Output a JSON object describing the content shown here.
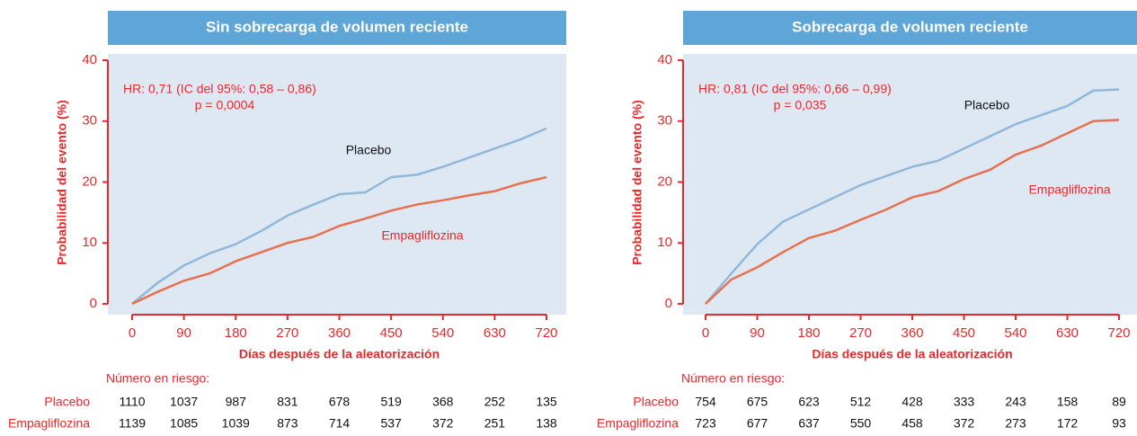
{
  "chart_data": [
    {
      "type": "line",
      "title": "Sin sobrecarga de volumen reciente",
      "xlabel": "Días después de la aleatorización",
      "ylabel": "Probabilidad del evento (%)",
      "annotations": [
        "HR: 0,71 (IC del 95%: 0,58 – 0,86)",
        "p = 0,0004"
      ],
      "xlim": [
        0,
        720
      ],
      "xticks": [
        0,
        90,
        180,
        270,
        360,
        450,
        540,
        630,
        720
      ],
      "ylim": [
        0,
        40
      ],
      "yticks": [
        0,
        10,
        20,
        30,
        40
      ],
      "x": [
        0,
        45,
        90,
        135,
        180,
        225,
        270,
        315,
        360,
        405,
        450,
        495,
        540,
        585,
        630,
        675,
        720
      ],
      "series": [
        {
          "name": "Placebo",
          "color": "#8fb8dc",
          "values": [
            0,
            3.5,
            6.3,
            8.3,
            9.8,
            12,
            14.5,
            16.3,
            18,
            18.3,
            20.8,
            21.2,
            22.5,
            24,
            25.5,
            27,
            28.8
          ]
        },
        {
          "name": "Empagliflozina",
          "color": "#e8704f",
          "values": [
            0,
            2,
            3.8,
            5,
            7,
            8.5,
            10,
            11,
            12.8,
            14,
            15.3,
            16.3,
            17,
            17.8,
            18.5,
            19.8,
            20.8
          ]
        }
      ],
      "risk_table": {
        "title": "Número en riesgo:",
        "rows": [
          {
            "name": "Placebo",
            "values": [
              1110,
              1037,
              987,
              831,
              678,
              519,
              368,
              252,
              135
            ]
          },
          {
            "name": "Empagliflozina",
            "values": [
              1139,
              1085,
              1039,
              873,
              714,
              537,
              372,
              251,
              138
            ]
          }
        ]
      }
    },
    {
      "type": "line",
      "title": "Sobrecarga de volumen reciente",
      "xlabel": "Días después de la aleatorización",
      "ylabel": "Probabilidad del evento (%)",
      "annotations": [
        "HR: 0,81 (IC del 95%: 0,66 – 0,99)",
        "p = 0,035"
      ],
      "xlim": [
        0,
        720
      ],
      "xticks": [
        0,
        90,
        180,
        270,
        360,
        450,
        540,
        630,
        720
      ],
      "ylim": [
        0,
        40
      ],
      "yticks": [
        0,
        10,
        20,
        30,
        40
      ],
      "x": [
        0,
        45,
        90,
        135,
        180,
        225,
        270,
        315,
        360,
        405,
        450,
        495,
        540,
        585,
        630,
        675,
        720
      ],
      "series": [
        {
          "name": "Placebo",
          "color": "#8fb8dc",
          "values": [
            0,
            5,
            9.8,
            13.5,
            15.5,
            17.5,
            19.5,
            21,
            22.5,
            23.5,
            25.5,
            27.5,
            29.5,
            31,
            32.5,
            35,
            35.2
          ]
        },
        {
          "name": "Empagliflozina",
          "color": "#e8704f",
          "values": [
            0,
            4,
            6,
            8.5,
            10.8,
            12,
            13.8,
            15.5,
            17.5,
            18.5,
            20.5,
            22,
            24.5,
            26,
            28,
            30,
            30.2
          ]
        }
      ],
      "risk_table": {
        "title": "Número en riesgo:",
        "rows": [
          {
            "name": "Placebo",
            "values": [
              754,
              675,
              623,
              512,
              428,
              333,
              243,
              158,
              89
            ]
          },
          {
            "name": "Empagliflozina",
            "values": [
              723,
              677,
              637,
              550,
              458,
              372,
              273,
              172,
              93
            ]
          }
        ]
      }
    }
  ]
}
